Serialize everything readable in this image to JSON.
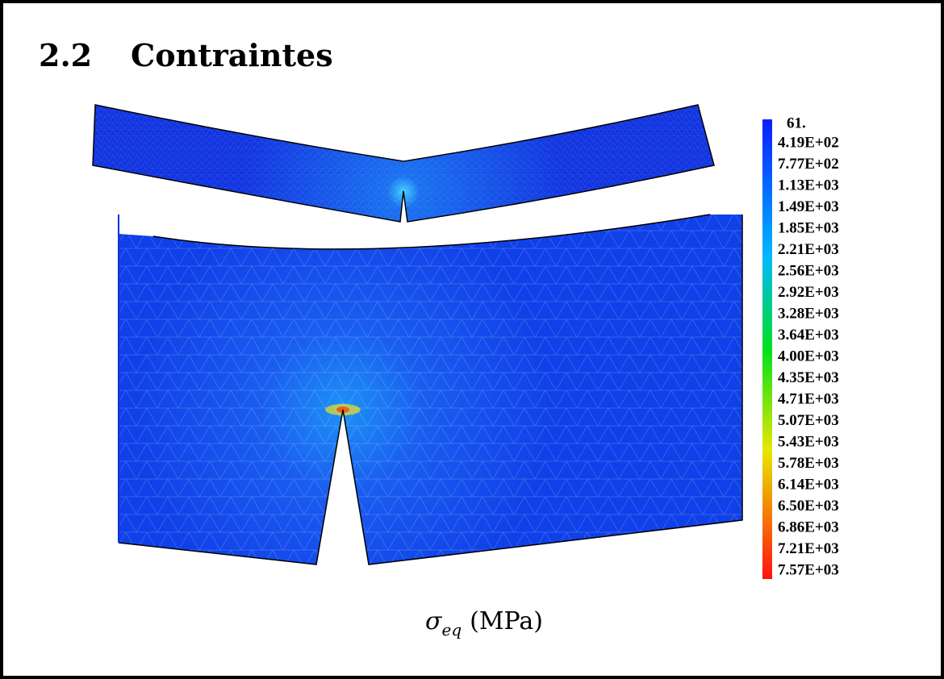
{
  "header": {
    "number": "2.2",
    "title": "Contraintes"
  },
  "colorbar": {
    "labels": [
      "61.",
      "4.19E+02",
      "7.77E+02",
      "1.13E+03",
      "1.49E+03",
      "1.85E+03",
      "2.21E+03",
      "2.56E+03",
      "2.92E+03",
      "3.28E+03",
      "3.64E+03",
      "4.00E+03",
      "4.35E+03",
      "4.71E+03",
      "5.07E+03",
      "5.43E+03",
      "5.78E+03",
      "6.14E+03",
      "6.50E+03",
      "6.86E+03",
      "7.21E+03",
      "7.57E+03"
    ]
  },
  "caption": {
    "symbol": "σ",
    "subscript": "eq",
    "unit": "(MPa)"
  }
}
